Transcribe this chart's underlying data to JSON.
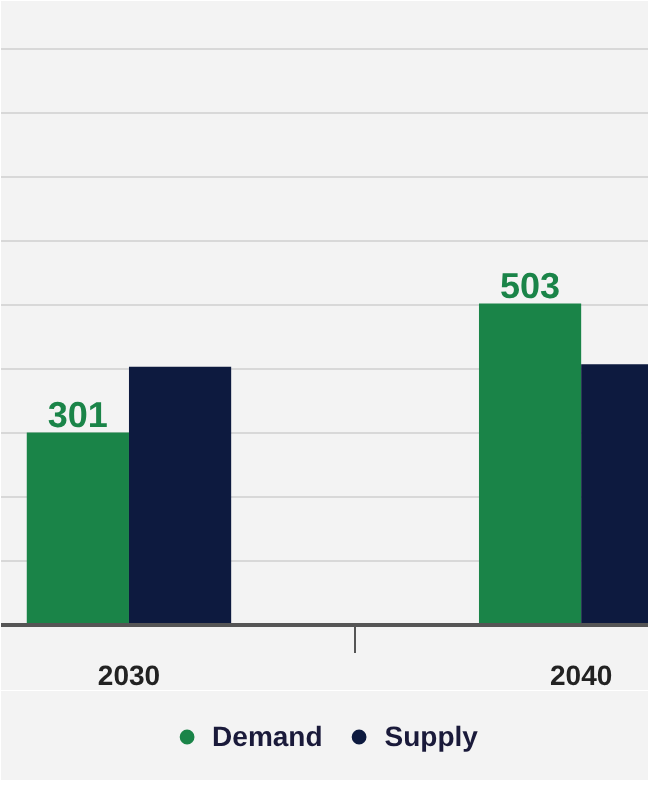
{
  "chart_data": {
    "type": "bar",
    "categories": [
      "2030",
      "2040"
    ],
    "series": [
      {
        "name": "Demand",
        "color": "#1a8448",
        "values": [
          301,
          503
        ],
        "value_labels": [
          "301",
          "503"
        ]
      },
      {
        "name": "Supply",
        "color": "#0d1a3f",
        "values": [
          404,
          408
        ],
        "value_labels": [
          null,
          null
        ]
      }
    ],
    "ylim": [
      0,
      920
    ],
    "yticks": [
      {
        "value": 100,
        "label": null
      },
      {
        "value": 200,
        "label": null
      },
      {
        "value": 300,
        "label": null
      },
      {
        "value": 400,
        "label": null
      },
      {
        "value": 500,
        "label": null
      },
      {
        "value": 600,
        "label": null
      },
      {
        "value": 700,
        "label": null
      },
      {
        "value": 800,
        "label": null
      },
      {
        "value": 900,
        "label": null
      }
    ],
    "tick_labels": "x",
    "grid": "y",
    "legend": "bottom",
    "marker": "circle"
  }
}
